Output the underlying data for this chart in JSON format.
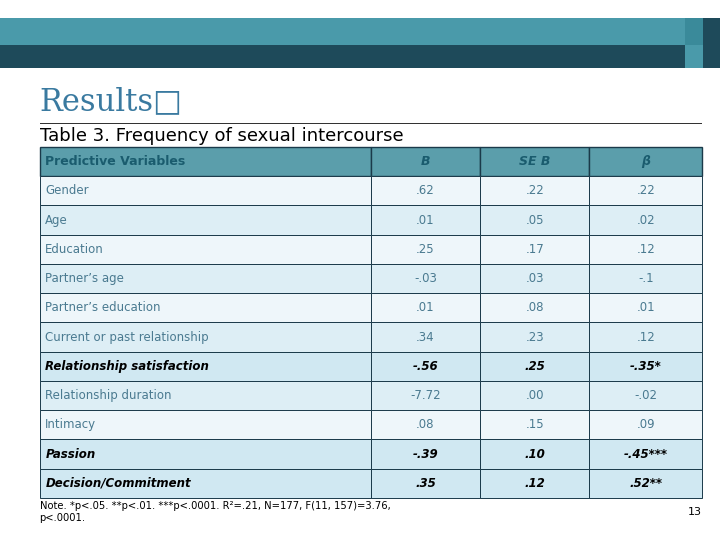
{
  "title": "Results□",
  "subtitle": "Table 3. Frequency of sexual intercourse",
  "header": [
    "Predictive Variables",
    "B",
    "SE B",
    "β"
  ],
  "rows": [
    [
      "Gender",
      ".62",
      ".22",
      ".22",
      false
    ],
    [
      "Age",
      ".01",
      ".05",
      ".02",
      false
    ],
    [
      "Education",
      ".25",
      ".17",
      ".12",
      false
    ],
    [
      "Partner’s age",
      "-.03",
      ".03",
      "-.1",
      false
    ],
    [
      "Partner’s education",
      ".01",
      ".08",
      ".01",
      false
    ],
    [
      "Current or past relationship",
      ".34",
      ".23",
      ".12",
      false
    ],
    [
      "Relationship satisfaction",
      "-.56",
      ".25",
      "-.35*",
      true
    ],
    [
      "Relationship duration",
      "-7.72",
      ".00",
      "-.02",
      false
    ],
    [
      "Intimacy",
      ".08",
      ".15",
      ".09",
      false
    ],
    [
      "Passion",
      "-.39",
      ".10",
      "-.45***",
      true
    ],
    [
      "Decision/Commitment",
      ".35",
      ".12",
      ".52**",
      true
    ]
  ],
  "note": "Note. *p<.05. **p<.01. ***p<.0001. R²=.21, N=177, F(11, 157)=3.76,\np<.0001.",
  "page_num": "13",
  "header_bg": "#5b9eab",
  "header_text_color": "#1a5c6e",
  "row_bg_even": "#ddeef5",
  "row_bg_odd": "#eef6fa",
  "header_border_color": "#1a3a4a",
  "cell_border_color": "#1a3a4a",
  "title_color": "#3a7aa0",
  "subtitle_color": "#000000",
  "top_bar_teal": "#4a9aaa",
  "top_bar_dark": "#1e4a5a",
  "top_bar_teal2": "#3a8a9a",
  "body_text_color": "#4a7a90",
  "bold_text_color": "#000000",
  "bold_row_bg": "#d0e8f2",
  "note_color": "#000000",
  "line_color": "#333333"
}
